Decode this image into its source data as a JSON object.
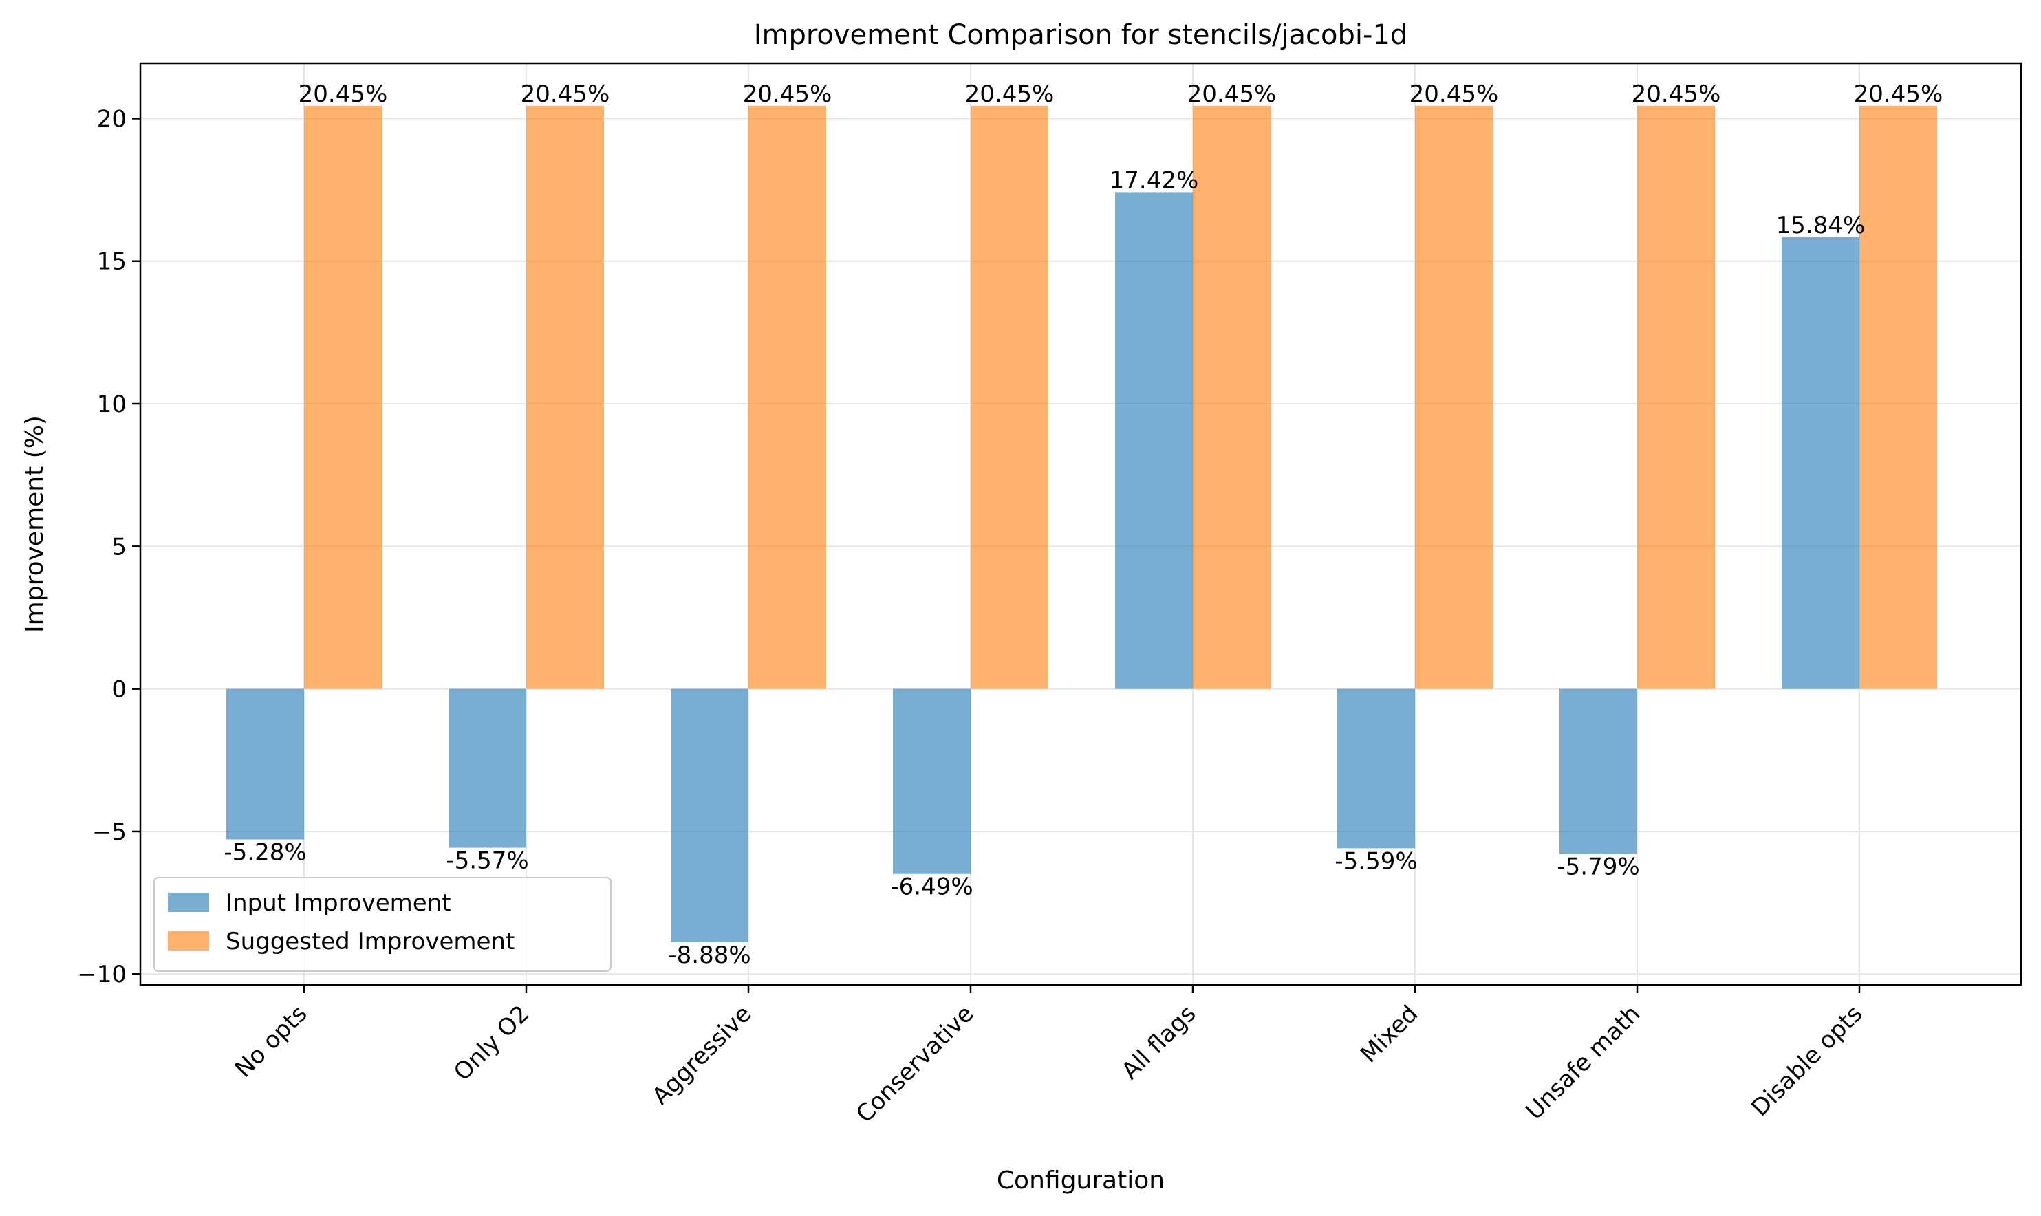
{
  "chart_data": {
    "type": "bar",
    "title": "Improvement Comparison for stencils/jacobi-1d",
    "xlabel": "Configuration",
    "ylabel": "Improvement (%)",
    "categories": [
      "No opts",
      "Only O2",
      "Aggressive",
      "Conservative",
      "All flags",
      "Mixed",
      "Unsafe math",
      "Disable opts"
    ],
    "series": [
      {
        "name": "Input Improvement",
        "color": "#1f77b4",
        "values": [
          -5.28,
          -5.57,
          -8.88,
          -6.49,
          17.42,
          -5.59,
          -5.79,
          15.84
        ],
        "labels": [
          "-5.28%",
          "-5.57%",
          "-8.88%",
          "-6.49%",
          "17.42%",
          "-5.59%",
          "-5.79%",
          "15.84%"
        ]
      },
      {
        "name": "Suggested Improvement",
        "color": "#ff7f0e",
        "values": [
          20.45,
          20.45,
          20.45,
          20.45,
          20.45,
          20.45,
          20.45,
          20.45
        ],
        "labels": [
          "20.45%",
          "20.45%",
          "20.45%",
          "20.45%",
          "20.45%",
          "20.45%",
          "20.45%",
          "20.45%"
        ]
      }
    ],
    "ylim": [
      -10.38,
      21.94
    ],
    "yticks": [
      -10,
      -5,
      0,
      5,
      10,
      15,
      20
    ],
    "ytick_labels": [
      "−10",
      "−5",
      "0",
      "5",
      "10",
      "15",
      "20"
    ],
    "grid": true,
    "legend_position": "lower-left",
    "bar_alpha": 0.6
  }
}
